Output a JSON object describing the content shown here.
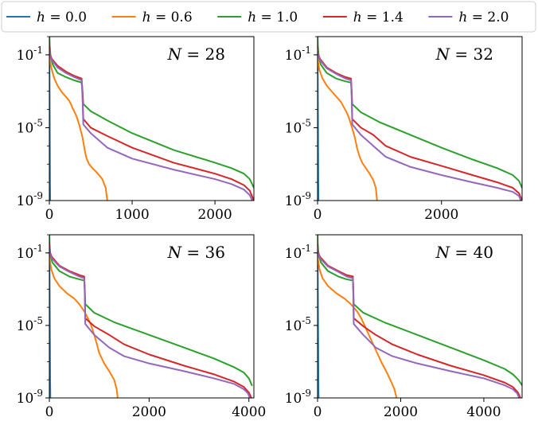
{
  "legend": {
    "entries": [
      {
        "label": "h = 0.0",
        "color": "#1f77b4"
      },
      {
        "label": "h = 0.6",
        "color": "#ff7f0e"
      },
      {
        "label": "h = 1.0",
        "color": "#2ca02c"
      },
      {
        "label": "h = 1.4",
        "color": "#d62728"
      },
      {
        "label": "h = 2.0",
        "color": "#9467bd"
      }
    ],
    "placement": "top, spanning all panels"
  },
  "chart_data": [
    {
      "type": "line",
      "annotation": "N = 28",
      "xlim": [
        0,
        2470
      ],
      "x_ticks": [
        0,
        1000,
        2000
      ],
      "x_tick_labels": [
        "0",
        "1000",
        "2000"
      ],
      "y_scale": "log",
      "ylim": [
        1e-09,
        1
      ],
      "y_ticks": [
        0.1,
        1e-05,
        1e-09
      ],
      "y_tick_labels": [
        "10^{-1}",
        "10^{-5}",
        "10^{-9}"
      ],
      "grid": false,
      "series": [
        {
          "name": "h = 0.0",
          "color": "#1f77b4",
          "x": [
            0,
            2,
            4,
            6,
            8,
            10
          ],
          "y": [
            0.5,
            0.01,
            0.0001,
            1e-06,
            1e-08,
            1e-09
          ]
        },
        {
          "name": "h = 0.6",
          "color": "#ff7f0e",
          "x": [
            0,
            5,
            30,
            60,
            100,
            150,
            200,
            240,
            260,
            280,
            300,
            330,
            360,
            400,
            430,
            450,
            480,
            520,
            560,
            600,
            640,
            680,
            700
          ],
          "y": [
            0.4,
            0.05,
            0.015,
            0.005,
            0.002,
            0.0009,
            0.0005,
            0.0003,
            0.0002,
            0.00012,
            8e-05,
            4e-05,
            1.5e-05,
            3e-06,
            5e-07,
            2e-07,
            1e-07,
            6e-08,
            4e-08,
            2.5e-08,
            1.5e-08,
            5e-09,
            1e-09
          ]
        },
        {
          "name": "h = 1.0",
          "color": "#2ca02c",
          "x": [
            0,
            5,
            15,
            40,
            100,
            200,
            300,
            390,
            400,
            410,
            500,
            700,
            1000,
            1500,
            2000,
            2200,
            2350,
            2420,
            2470
          ],
          "y": [
            1.5,
            0.3,
            0.08,
            0.03,
            0.01,
            0.006,
            0.004,
            0.003,
            0.001,
            0.0002,
            8e-05,
            2.5e-05,
            5e-06,
            6e-07,
            1.2e-07,
            6e-08,
            3e-08,
            1.5e-08,
            5e-09
          ]
        },
        {
          "name": "h = 1.4",
          "color": "#d62728",
          "x": [
            0,
            5,
            30,
            100,
            200,
            300,
            390,
            400,
            410,
            500,
            700,
            1000,
            1500,
            2000,
            2200,
            2350,
            2420,
            2470
          ],
          "y": [
            0.3,
            0.12,
            0.06,
            0.025,
            0.012,
            0.007,
            0.005,
            0.001,
            3e-05,
            1e-05,
            3.5e-06,
            8e-07,
            1.2e-07,
            3e-08,
            1.5e-08,
            7e-09,
            3.5e-09,
            1e-09
          ]
        },
        {
          "name": "h = 2.0",
          "color": "#9467bd",
          "x": [
            0,
            5,
            30,
            100,
            200,
            300,
            390,
            400,
            410,
            500,
            700,
            1000,
            1500,
            2000,
            2200,
            2350,
            2420,
            2450
          ],
          "y": [
            0.2,
            0.1,
            0.05,
            0.02,
            0.01,
            0.006,
            0.004,
            0.0005,
            1.5e-05,
            5e-06,
            8e-07,
            2e-07,
            5e-08,
            1.5e-08,
            8e-09,
            4e-09,
            2e-09,
            1e-09
          ]
        }
      ]
    },
    {
      "type": "line",
      "annotation": "N = 32",
      "xlim": [
        0,
        3300
      ],
      "x_ticks": [
        0,
        2000
      ],
      "x_tick_labels": [
        "0",
        "2000"
      ],
      "y_scale": "log",
      "ylim": [
        1e-09,
        1
      ],
      "y_ticks": [
        0.1,
        1e-05,
        1e-09
      ],
      "y_tick_labels": [
        "10^{-1}",
        "10^{-5}",
        "10^{-9}"
      ],
      "grid": false,
      "series": [
        {
          "name": "h = 0.0",
          "color": "#1f77b4",
          "x": [
            0,
            3,
            6,
            9,
            12,
            15
          ],
          "y": [
            0.5,
            0.01,
            0.0001,
            1e-06,
            1e-08,
            1e-09
          ]
        },
        {
          "name": "h = 0.6",
          "color": "#ff7f0e",
          "x": [
            0,
            5,
            30,
            80,
            150,
            250,
            330,
            380,
            420,
            460,
            500,
            550,
            600,
            640,
            680,
            720,
            780,
            840,
            900,
            940,
            960
          ],
          "y": [
            0.4,
            0.05,
            0.015,
            0.005,
            0.002,
            0.0008,
            0.0004,
            0.00025,
            0.00014,
            8e-05,
            4e-05,
            1.2e-05,
            3e-06,
            7e-07,
            2.5e-07,
            1.2e-07,
            6e-08,
            3e-08,
            1.3e-08,
            5e-09,
            1e-09
          ]
        },
        {
          "name": "h = 1.0",
          "color": "#2ca02c",
          "x": [
            0,
            5,
            20,
            50,
            150,
            300,
            450,
            540,
            550,
            560,
            700,
            1000,
            1500,
            2000,
            2500,
            2900,
            3150,
            3250,
            3300
          ],
          "y": [
            1.5,
            0.3,
            0.08,
            0.03,
            0.01,
            0.005,
            0.0035,
            0.003,
            0.001,
            0.0002,
            7e-05,
            2e-05,
            4e-06,
            8e-07,
            1.8e-07,
            6e-08,
            2.5e-08,
            1.2e-08,
            5e-09
          ]
        },
        {
          "name": "h = 1.4",
          "color": "#d62728",
          "x": [
            0,
            5,
            40,
            150,
            300,
            450,
            540,
            550,
            560,
            700,
            900,
            1100,
            1500,
            2000,
            2500,
            2900,
            3150,
            3250,
            3300
          ],
          "y": [
            0.3,
            0.12,
            0.06,
            0.02,
            0.01,
            0.006,
            0.005,
            0.001,
            3e-05,
            1e-05,
            4e-06,
            1e-06,
            2.5e-07,
            8e-08,
            2.5e-08,
            1e-08,
            5e-09,
            2.5e-09,
            1e-09
          ]
        },
        {
          "name": "h = 2.0",
          "color": "#9467bd",
          "x": [
            0,
            5,
            40,
            150,
            300,
            450,
            540,
            550,
            560,
            700,
            900,
            1100,
            1500,
            2000,
            2500,
            2900,
            3150,
            3250,
            3280
          ],
          "y": [
            0.2,
            0.1,
            0.05,
            0.018,
            0.009,
            0.005,
            0.004,
            0.0005,
            1.5e-05,
            4e-06,
            1e-06,
            2.5e-07,
            7e-08,
            2.5e-08,
            1e-08,
            5e-09,
            3e-09,
            1.8e-09,
            1e-09
          ]
        }
      ]
    },
    {
      "type": "line",
      "annotation": "N = 36",
      "xlim": [
        0,
        4100
      ],
      "x_ticks": [
        0,
        2000,
        4000
      ],
      "x_tick_labels": [
        "0",
        "2000",
        "4000"
      ],
      "y_scale": "log",
      "ylim": [
        1e-09,
        1
      ],
      "y_ticks": [
        0.1,
        1e-05,
        1e-09
      ],
      "y_tick_labels": [
        "10^{-1}",
        "10^{-5}",
        "10^{-9}"
      ],
      "grid": false,
      "series": [
        {
          "name": "h = 0.0",
          "color": "#1f77b4",
          "x": [
            0,
            4,
            8,
            12,
            16,
            20
          ],
          "y": [
            0.5,
            0.01,
            0.0001,
            1e-06,
            1e-08,
            1e-09
          ]
        },
        {
          "name": "h = 0.6",
          "color": "#ff7f0e",
          "x": [
            0,
            5,
            40,
            100,
            200,
            350,
            500,
            600,
            700,
            800,
            850,
            900,
            950,
            1000,
            1100,
            1200,
            1300,
            1350,
            1370
          ],
          "y": [
            0.4,
            0.05,
            0.012,
            0.004,
            0.0015,
            0.0006,
            0.0003,
            0.00015,
            6e-05,
            1.8e-05,
            8e-06,
            3e-06,
            1e-06,
            3e-07,
            8e-08,
            3e-08,
            1e-08,
            3e-09,
            1e-09
          ]
        },
        {
          "name": "h = 1.0",
          "color": "#2ca02c",
          "x": [
            0,
            5,
            20,
            60,
            200,
            400,
            600,
            700,
            710,
            720,
            900,
            1300,
            2000,
            2700,
            3300,
            3700,
            3900,
            4000,
            4060
          ],
          "y": [
            1.5,
            0.3,
            0.08,
            0.03,
            0.01,
            0.005,
            0.0035,
            0.003,
            0.001,
            0.00015,
            5e-05,
            1.5e-05,
            3e-06,
            6e-07,
            1.5e-07,
            5e-08,
            2.5e-08,
            1.2e-08,
            5e-09
          ]
        },
        {
          "name": "h = 1.4",
          "color": "#d62728",
          "x": [
            0,
            5,
            50,
            200,
            400,
            600,
            700,
            710,
            720,
            900,
            1200,
            1500,
            2000,
            2700,
            3300,
            3700,
            3900,
            4000,
            4050
          ],
          "y": [
            0.3,
            0.12,
            0.06,
            0.02,
            0.01,
            0.006,
            0.005,
            0.001,
            2.5e-05,
            9e-06,
            3e-06,
            9e-07,
            2.5e-07,
            6e-08,
            2e-08,
            8e-09,
            4e-09,
            2e-09,
            1e-09
          ]
        },
        {
          "name": "h = 2.0",
          "color": "#9467bd",
          "x": [
            0,
            5,
            50,
            200,
            400,
            600,
            700,
            710,
            720,
            900,
            1200,
            1500,
            2000,
            2700,
            3300,
            3700,
            3900,
            3980,
            4020
          ],
          "y": [
            0.2,
            0.1,
            0.05,
            0.018,
            0.009,
            0.005,
            0.004,
            0.0005,
            1.2e-05,
            3e-06,
            6e-07,
            2e-07,
            8e-08,
            3e-08,
            1.2e-08,
            6e-09,
            3e-09,
            1.8e-09,
            1e-09
          ]
        }
      ]
    },
    {
      "type": "line",
      "annotation": "N = 40",
      "xlim": [
        0,
        4920
      ],
      "x_ticks": [
        0,
        2000,
        4000
      ],
      "x_tick_labels": [
        "0",
        "2000",
        "4000"
      ],
      "y_scale": "log",
      "ylim": [
        1e-09,
        1
      ],
      "y_ticks": [
        0.1,
        1e-05,
        1e-09
      ],
      "y_tick_labels": [
        "10^{-1}",
        "10^{-5}",
        "10^{-9}"
      ],
      "grid": false,
      "series": [
        {
          "name": "h = 0.0",
          "color": "#1f77b4",
          "x": [
            0,
            5,
            10,
            15,
            20,
            25
          ],
          "y": [
            0.5,
            0.01,
            0.0001,
            1e-06,
            1e-08,
            1e-09
          ]
        },
        {
          "name": "h = 0.6",
          "color": "#ff7f0e",
          "x": [
            0,
            5,
            50,
            120,
            250,
            450,
            650,
            800,
            950,
            1050,
            1150,
            1250,
            1350,
            1450,
            1550,
            1650,
            1750,
            1850,
            1900
          ],
          "y": [
            0.4,
            0.05,
            0.012,
            0.004,
            0.0015,
            0.0006,
            0.0003,
            0.00015,
            6e-05,
            2.5e-05,
            8e-06,
            2.5e-06,
            8e-07,
            2.5e-07,
            8e-08,
            3e-08,
            1e-08,
            3e-09,
            1e-09
          ]
        },
        {
          "name": "h = 1.0",
          "color": "#2ca02c",
          "x": [
            0,
            5,
            25,
            80,
            250,
            500,
            700,
            850,
            860,
            870,
            1100,
            1600,
            2400,
            3200,
            4000,
            4500,
            4700,
            4830,
            4920
          ],
          "y": [
            1.5,
            0.3,
            0.08,
            0.03,
            0.01,
            0.005,
            0.0035,
            0.003,
            0.001,
            0.00015,
            5e-05,
            1.5e-05,
            3e-06,
            6e-07,
            1.2e-07,
            4e-08,
            2e-08,
            1e-08,
            5e-09
          ]
        },
        {
          "name": "h = 1.4",
          "color": "#d62728",
          "x": [
            0,
            5,
            60,
            250,
            500,
            700,
            850,
            860,
            870,
            1100,
            1400,
            1800,
            2400,
            3200,
            4000,
            4500,
            4700,
            4820,
            4880
          ],
          "y": [
            0.3,
            0.12,
            0.06,
            0.02,
            0.01,
            0.006,
            0.005,
            0.001,
            2.5e-05,
            9e-06,
            3e-06,
            9e-07,
            2.5e-07,
            6e-08,
            1.8e-08,
            7e-09,
            4e-09,
            2e-09,
            1e-09
          ]
        },
        {
          "name": "h = 2.0",
          "color": "#9467bd",
          "x": [
            0,
            5,
            60,
            250,
            500,
            700,
            850,
            860,
            870,
            1100,
            1400,
            1800,
            2400,
            3200,
            4000,
            4500,
            4700,
            4800,
            4850
          ],
          "y": [
            0.2,
            0.1,
            0.05,
            0.018,
            0.009,
            0.005,
            0.004,
            0.0005,
            1.2e-05,
            3e-06,
            6e-07,
            2e-07,
            8e-08,
            3e-08,
            1.2e-08,
            5e-09,
            3e-09,
            1.8e-09,
            1e-09
          ]
        }
      ]
    }
  ]
}
